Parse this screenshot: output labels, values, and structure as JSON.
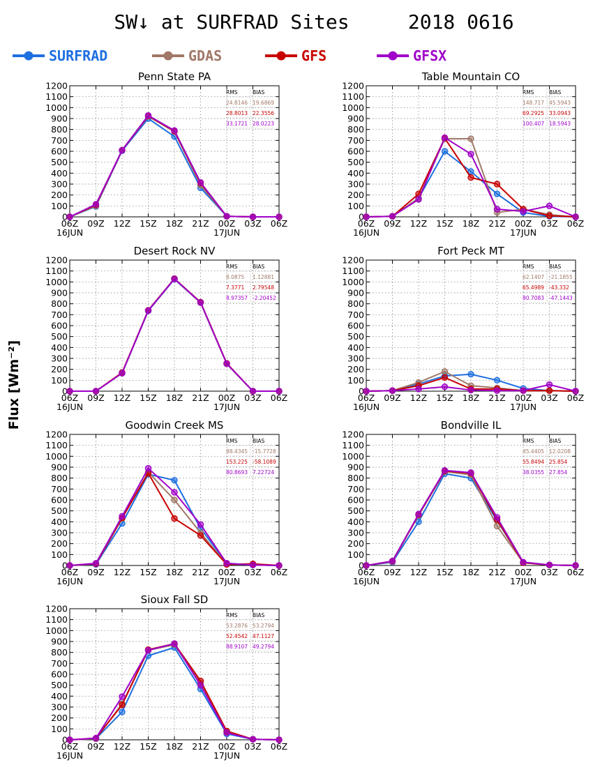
{
  "figure": {
    "title": "SW↓ at SURFRAD Sites     2018 0616",
    "ylabel": "Flux [Wm⁻²]",
    "legend": [
      {
        "name": "SURFRAD",
        "color": "#1e6fe0"
      },
      {
        "name": "GDAS",
        "color": "#a07868"
      },
      {
        "name": "GFS",
        "color": "#c80000"
      },
      {
        "name": "GFSX",
        "color": "#a000c8"
      }
    ]
  },
  "chart_data": [
    {
      "type": "line",
      "title": "Penn State PA",
      "x": [
        "06Z",
        "09Z",
        "12Z",
        "15Z",
        "18Z",
        "21Z",
        "00Z",
        "03Z",
        "06Z"
      ],
      "date_labels": [
        "16JUN",
        "",
        "",
        "",
        "",
        "",
        "17JUN",
        "",
        ""
      ],
      "ylim": [
        0,
        1200
      ],
      "yticks": [
        0,
        100,
        200,
        300,
        400,
        500,
        600,
        700,
        800,
        900,
        1000,
        1100,
        1200
      ],
      "grid": true,
      "stats_header": [
        "RMS",
        "BIAS"
      ],
      "stats": [
        [
          "24.8146",
          "19.6869"
        ],
        [
          "28.8013",
          "22.3556"
        ],
        [
          "33.1721",
          "28.0223"
        ]
      ],
      "series": [
        {
          "name": "SURFRAD",
          "color": "#1e6fe0",
          "values": [
            0,
            95,
            605,
            900,
            735,
            265,
            5,
            0,
            0
          ]
        },
        {
          "name": "GDAS",
          "color": "#a07868",
          "values": [
            0,
            100,
            610,
            920,
            780,
            290,
            5,
            0,
            0
          ]
        },
        {
          "name": "GFS",
          "color": "#c80000",
          "values": [
            0,
            110,
            610,
            925,
            785,
            310,
            5,
            0,
            0
          ]
        },
        {
          "name": "GFSX",
          "color": "#a000c8",
          "values": [
            0,
            115,
            610,
            928,
            790,
            315,
            5,
            0,
            0
          ]
        }
      ]
    },
    {
      "type": "line",
      "title": "Table Mountain CO",
      "x": [
        "06Z",
        "09Z",
        "12Z",
        "15Z",
        "18Z",
        "21Z",
        "00Z",
        "03Z",
        "06Z"
      ],
      "date_labels": [
        "16JUN",
        "",
        "",
        "",
        "",
        "",
        "17JUN",
        "",
        ""
      ],
      "ylim": [
        0,
        1200
      ],
      "yticks": [
        0,
        100,
        200,
        300,
        400,
        500,
        600,
        700,
        800,
        900,
        1000,
        1100,
        1200
      ],
      "grid": true,
      "stats_header": [
        "RMS",
        "BIAS"
      ],
      "stats": [
        [
          "148.717",
          "45.5943"
        ],
        [
          "69.2925",
          "33.0943"
        ],
        [
          "100.407",
          "18.5943"
        ]
      ],
      "series": [
        {
          "name": "SURFRAD",
          "color": "#1e6fe0",
          "values": [
            0,
            5,
            170,
            600,
            415,
            210,
            40,
            5,
            0
          ]
        },
        {
          "name": "GDAS",
          "color": "#a07868",
          "values": [
            0,
            5,
            170,
            715,
            715,
            40,
            70,
            20,
            0
          ]
        },
        {
          "name": "GFS",
          "color": "#c80000",
          "values": [
            0,
            5,
            210,
            720,
            360,
            300,
            70,
            10,
            0
          ]
        },
        {
          "name": "GFSX",
          "color": "#a000c8",
          "values": [
            0,
            5,
            160,
            725,
            575,
            70,
            50,
            100,
            0
          ]
        }
      ]
    },
    {
      "type": "line",
      "title": "Desert Rock NV",
      "x": [
        "06Z",
        "09Z",
        "12Z",
        "15Z",
        "18Z",
        "21Z",
        "00Z",
        "03Z",
        "06Z"
      ],
      "date_labels": [
        "16JUN",
        "",
        "",
        "",
        "",
        "",
        "17JUN",
        "",
        ""
      ],
      "ylim": [
        0,
        1200
      ],
      "yticks": [
        0,
        100,
        200,
        300,
        400,
        500,
        600,
        700,
        800,
        900,
        1000,
        1100,
        1200
      ],
      "grid": true,
      "stats_header": [
        "RMS",
        "BIAS"
      ],
      "stats": [
        [
          "8.0875",
          "1.12881"
        ],
        [
          "7.3771",
          "2.79548"
        ],
        [
          "8.97357",
          "-2.20452"
        ]
      ],
      "series": [
        {
          "name": "SURFRAD",
          "color": "#1e6fe0",
          "values": [
            0,
            0,
            165,
            735,
            1025,
            810,
            250,
            0,
            0
          ]
        },
        {
          "name": "GDAS",
          "color": "#a07868",
          "values": [
            0,
            0,
            165,
            740,
            1030,
            810,
            250,
            0,
            0
          ]
        },
        {
          "name": "GFS",
          "color": "#c80000",
          "values": [
            0,
            0,
            170,
            740,
            1030,
            815,
            255,
            0,
            0
          ]
        },
        {
          "name": "GFSX",
          "color": "#a000c8",
          "values": [
            0,
            0,
            165,
            738,
            1028,
            812,
            252,
            0,
            0
          ]
        }
      ]
    },
    {
      "type": "line",
      "title": "Fort Peck MT",
      "x": [
        "06Z",
        "09Z",
        "12Z",
        "15Z",
        "18Z",
        "21Z",
        "00Z",
        "03Z",
        "06Z"
      ],
      "date_labels": [
        "16JUN",
        "",
        "",
        "",
        "",
        "",
        "17JUN",
        "",
        ""
      ],
      "ylim": [
        0,
        1200
      ],
      "yticks": [
        0,
        100,
        200,
        300,
        400,
        500,
        600,
        700,
        800,
        900,
        1000,
        1100,
        1200
      ],
      "grid": true,
      "stats_header": [
        "RMS",
        "BIAS"
      ],
      "stats": [
        [
          "62.1407",
          "-21.1855"
        ],
        [
          "65.4989",
          "-43.332"
        ],
        [
          "80.7083",
          "-47.1443"
        ]
      ],
      "series": [
        {
          "name": "SURFRAD",
          "color": "#1e6fe0",
          "values": [
            0,
            5,
            65,
            140,
            155,
            100,
            25,
            5,
            0
          ]
        },
        {
          "name": "GDAS",
          "color": "#a07868",
          "values": [
            0,
            5,
            80,
            180,
            50,
            30,
            5,
            5,
            0
          ]
        },
        {
          "name": "GFS",
          "color": "#c80000",
          "values": [
            0,
            5,
            50,
            125,
            20,
            20,
            5,
            5,
            0
          ]
        },
        {
          "name": "GFSX",
          "color": "#a000c8",
          "values": [
            0,
            5,
            20,
            40,
            10,
            5,
            5,
            60,
            0
          ]
        }
      ]
    },
    {
      "type": "line",
      "title": "Goodwin Creek MS",
      "x": [
        "06Z",
        "09Z",
        "12Z",
        "15Z",
        "18Z",
        "21Z",
        "00Z",
        "03Z",
        "06Z"
      ],
      "date_labels": [
        "16JUN",
        "",
        "",
        "",
        "",
        "",
        "17JUN",
        "",
        ""
      ],
      "ylim": [
        0,
        1200
      ],
      "yticks": [
        0,
        100,
        200,
        300,
        400,
        500,
        600,
        700,
        800,
        900,
        1000,
        1100,
        1200
      ],
      "grid": true,
      "stats_header": [
        "RMS",
        "BIAS"
      ],
      "stats": [
        [
          "88.4345",
          "-15.7728"
        ],
        [
          "153.225",
          "-58.1089"
        ],
        [
          "80.8693",
          "7.22724"
        ]
      ],
      "series": [
        {
          "name": "SURFRAD",
          "color": "#1e6fe0",
          "values": [
            0,
            10,
            385,
            835,
            780,
            340,
            20,
            5,
            0
          ]
        },
        {
          "name": "GDAS",
          "color": "#a07868",
          "values": [
            0,
            15,
            430,
            855,
            600,
            300,
            10,
            10,
            0
          ]
        },
        {
          "name": "GFS",
          "color": "#c80000",
          "values": [
            0,
            15,
            435,
            845,
            430,
            275,
            10,
            15,
            0
          ]
        },
        {
          "name": "GFSX",
          "color": "#a000c8",
          "values": [
            0,
            20,
            450,
            890,
            670,
            375,
            20,
            5,
            0
          ]
        }
      ]
    },
    {
      "type": "line",
      "title": "Bondville IL",
      "x": [
        "06Z",
        "09Z",
        "12Z",
        "15Z",
        "18Z",
        "21Z",
        "00Z",
        "03Z",
        "06Z"
      ],
      "date_labels": [
        "16JUN",
        "",
        "",
        "",
        "",
        "",
        "17JUN",
        "",
        ""
      ],
      "ylim": [
        0,
        1200
      ],
      "yticks": [
        0,
        100,
        200,
        300,
        400,
        500,
        600,
        700,
        800,
        900,
        1000,
        1100,
        1200
      ],
      "grid": true,
      "stats_header": [
        "RMS",
        "BIAS"
      ],
      "stats": [
        [
          "45.4405",
          "12.0208"
        ],
        [
          "55.8494",
          "25.854"
        ],
        [
          "38.0355",
          "27.854"
        ]
      ],
      "series": [
        {
          "name": "SURFRAD",
          "color": "#1e6fe0",
          "values": [
            0,
            30,
            400,
            840,
            800,
            410,
            30,
            5,
            0
          ]
        },
        {
          "name": "GDAS",
          "color": "#a07868",
          "values": [
            0,
            35,
            460,
            860,
            830,
            360,
            25,
            5,
            0
          ]
        },
        {
          "name": "GFS",
          "color": "#c80000",
          "values": [
            0,
            40,
            465,
            865,
            845,
            420,
            25,
            5,
            0
          ]
        },
        {
          "name": "GFSX",
          "color": "#a000c8",
          "values": [
            0,
            40,
            470,
            870,
            850,
            440,
            30,
            5,
            0
          ]
        }
      ]
    },
    {
      "type": "line",
      "title": "Sioux Fall SD",
      "x": [
        "06Z",
        "09Z",
        "12Z",
        "15Z",
        "18Z",
        "21Z",
        "00Z",
        "03Z",
        "06Z"
      ],
      "date_labels": [
        "16JUN",
        "",
        "",
        "",
        "",
        "",
        "17JUN",
        "",
        ""
      ],
      "ylim": [
        0,
        1200
      ],
      "yticks": [
        0,
        100,
        200,
        300,
        400,
        500,
        600,
        700,
        800,
        900,
        1000,
        1100,
        1200
      ],
      "grid": true,
      "stats_header": [
        "RMS",
        "BIAS"
      ],
      "stats": [
        [
          "53.2876",
          "53.2794"
        ],
        [
          "52.4542",
          "47.1127"
        ],
        [
          "88.9107",
          "49.2794"
        ]
      ],
      "series": [
        {
          "name": "SURFRAD",
          "color": "#1e6fe0",
          "values": [
            0,
            10,
            255,
            770,
            845,
            465,
            55,
            5,
            0
          ]
        },
        {
          "name": "GDAS",
          "color": "#a07868",
          "values": [
            0,
            10,
            330,
            820,
            870,
            520,
            75,
            5,
            0
          ]
        },
        {
          "name": "GFS",
          "color": "#c80000",
          "values": [
            0,
            15,
            320,
            825,
            880,
            540,
            80,
            5,
            0
          ]
        },
        {
          "name": "GFSX",
          "color": "#a000c8",
          "values": [
            0,
            15,
            395,
            820,
            880,
            500,
            65,
            5,
            0
          ]
        }
      ]
    }
  ]
}
